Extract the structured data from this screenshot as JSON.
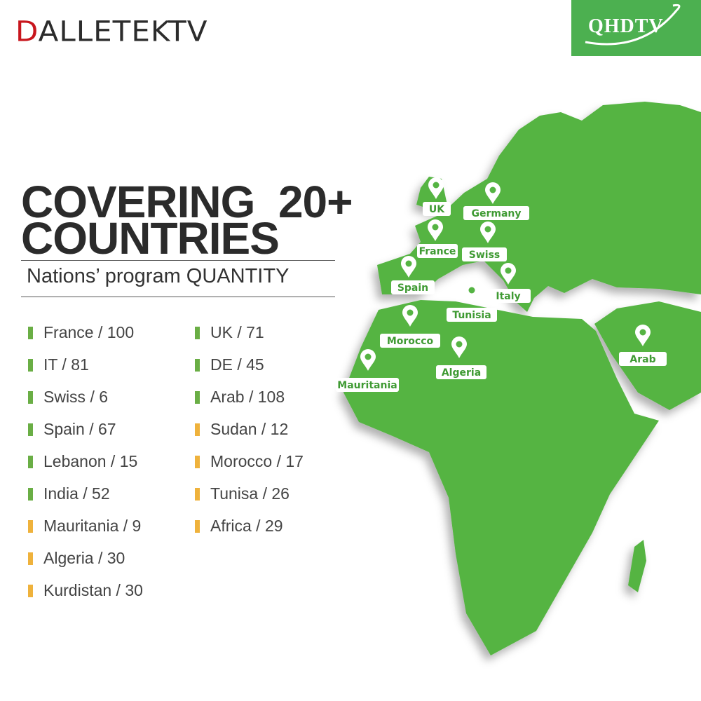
{
  "brand": "DALLETEKTV",
  "badge": "QHDTV",
  "headline": [
    "COVERING  20+",
    "COUNTRIES"
  ],
  "subtitle": "Nations’ program QUANTITY",
  "columns": [
    [
      {
        "text": "France / 100",
        "color": "#6aae45"
      },
      {
        "text": "IT / 81",
        "color": "#6aae45"
      },
      {
        "text": "Swiss / 6",
        "color": "#6aae45"
      },
      {
        "text": "Spain / 67",
        "color": "#6aae45"
      },
      {
        "text": "Lebanon / 15",
        "color": "#6aae45"
      },
      {
        "text": "India / 52",
        "color": "#6aae45"
      },
      {
        "text": "Mauritania / 9",
        "color": "#efb23c"
      },
      {
        "text": "Algeria / 30",
        "color": "#efb23c"
      },
      {
        "text": "Kurdistan / 30",
        "color": "#efb23c"
      }
    ],
    [
      {
        "text": "UK / 71",
        "color": "#6aae45"
      },
      {
        "text": "DE / 45",
        "color": "#6aae45"
      },
      {
        "text": "Arab / 108",
        "color": "#6aae45"
      },
      {
        "text": "Sudan / 12",
        "color": "#efb23c"
      },
      {
        "text": "Morocco / 17",
        "color": "#efb23c"
      },
      {
        "text": "Tunisa / 26",
        "color": "#efb23c"
      },
      {
        "text": "Africa / 29",
        "color": "#efb23c"
      }
    ]
  ],
  "map_labels": [
    "UK",
    "Germany",
    "France",
    "Swiss",
    "Spain",
    "Italy",
    "Tunisia",
    "Morocco",
    "Algeria",
    "Mauritania",
    "Arab"
  ]
}
